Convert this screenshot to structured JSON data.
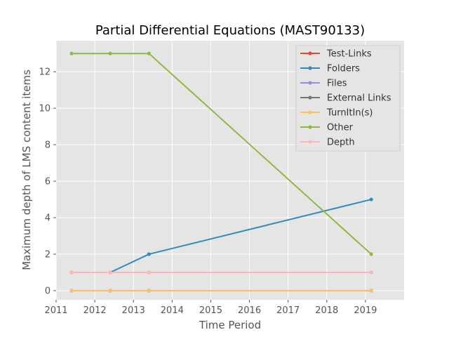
{
  "chart_data": {
    "type": "line",
    "title": "Partial Differential Equations (MAST90133)",
    "xlabel": "Time Period",
    "ylabel": "Maximum depth of LMS content items",
    "xlim": [
      2011,
      2020
    ],
    "ylim": [
      -0.5,
      13.7
    ],
    "xticks": [
      2011,
      2012,
      2013,
      2014,
      2015,
      2016,
      2017,
      2018,
      2019
    ],
    "yticks": [
      0,
      2,
      4,
      6,
      8,
      10,
      12
    ],
    "x": [
      2011.4,
      2012.4,
      2013.4,
      2019.15
    ],
    "grid": true,
    "legend_position": "top-right",
    "series": [
      {
        "name": "Test-Links",
        "color": "#E24A33",
        "values": [
          0,
          0,
          0,
          0
        ]
      },
      {
        "name": "Folders",
        "color": "#348ABD",
        "values": [
          1,
          1,
          2,
          5
        ]
      },
      {
        "name": "Files",
        "color": "#988ED5",
        "values": [
          0,
          0,
          0,
          0
        ]
      },
      {
        "name": "External Links",
        "color": "#777777",
        "values": [
          1,
          1,
          1,
          1
        ]
      },
      {
        "name": "TurnItIn(s)",
        "color": "#FBC15E",
        "values": [
          0,
          0,
          0,
          0
        ]
      },
      {
        "name": "Other",
        "color": "#8EBA42",
        "values": [
          13,
          13,
          13,
          2
        ]
      },
      {
        "name": "Depth",
        "color": "#FFB5B8",
        "values": [
          1,
          1,
          1,
          1
        ]
      }
    ]
  }
}
